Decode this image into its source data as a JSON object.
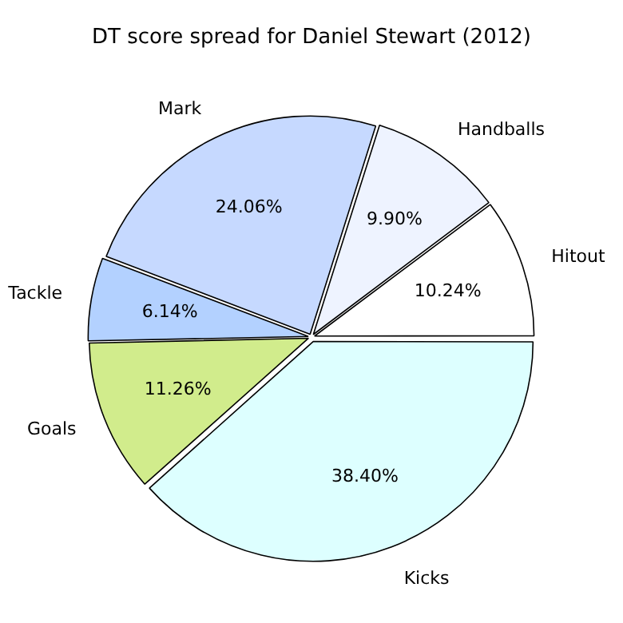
{
  "chart_data": {
    "type": "pie",
    "title": "DT score spread for Daniel Stewart (2012)",
    "categories": [
      "Hitout",
      "Handballs",
      "Mark",
      "Tackle",
      "Goals",
      "Kicks"
    ],
    "values": [
      10.24,
      9.9,
      24.06,
      6.14,
      11.26,
      38.4
    ],
    "colors": [
      "#ffffff",
      "#eef3ff",
      "#c6d9ff",
      "#b3d1ff",
      "#d1ec8c",
      "#ddffff"
    ],
    "value_labels": [
      "10.24%",
      "9.90%",
      "24.06%",
      "6.14%",
      "11.26%",
      "38.40%"
    ],
    "legend": false
  }
}
